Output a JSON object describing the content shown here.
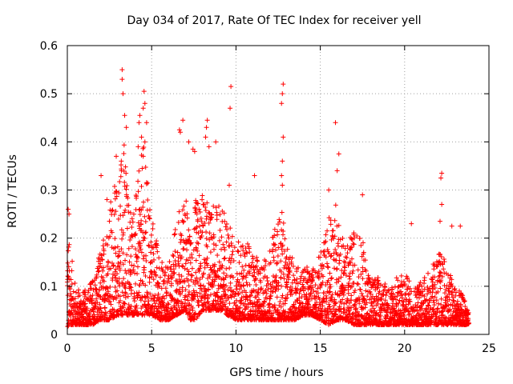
{
  "chart_data": {
    "type": "scatter",
    "title": "Day 034 of 2017, Rate Of TEC Index for receiver yell",
    "xlabel": "GPS time / hours",
    "ylabel": "ROTI / TECUs",
    "xlim": [
      0,
      25
    ],
    "ylim": [
      0,
      0.6
    ],
    "xticks": [
      0,
      5,
      10,
      15,
      20,
      25
    ],
    "xtick_labels": [
      "0",
      "5",
      "10",
      "15",
      "20",
      "25"
    ],
    "yticks": [
      0,
      0.1,
      0.2,
      0.3,
      0.4,
      0.5,
      0.6
    ],
    "ytick_labels": [
      "0",
      "0.1",
      "0.2",
      "0.3",
      "0.4",
      "0.5",
      "0.6"
    ],
    "grid": true,
    "marker": "+",
    "color": "#ff0000",
    "data_extent_hours": [
      0,
      23.8
    ],
    "profile": {
      "hours": [
        0,
        0.1,
        0.5,
        1,
        1.5,
        2,
        2.5,
        3,
        3.3,
        3.6,
        4,
        4.5,
        5,
        5.5,
        6,
        6.5,
        7,
        7.3,
        7.6,
        8,
        8.5,
        9,
        9.5,
        10,
        10.5,
        11,
        11.5,
        12,
        12.5,
        12.8,
        13,
        13.5,
        14,
        14.5,
        15,
        15.5,
        16,
        16.5,
        17,
        17.5,
        18,
        18.5,
        19,
        19.5,
        20,
        20.5,
        21,
        21.5,
        22,
        22.5,
        23,
        23.5,
        23.8
      ],
      "upper_envelope": [
        0.26,
        0.2,
        0.1,
        0.09,
        0.12,
        0.18,
        0.28,
        0.33,
        0.45,
        0.3,
        0.28,
        0.4,
        0.26,
        0.16,
        0.14,
        0.25,
        0.3,
        0.2,
        0.28,
        0.3,
        0.26,
        0.28,
        0.25,
        0.19,
        0.2,
        0.17,
        0.15,
        0.18,
        0.25,
        0.26,
        0.18,
        0.15,
        0.14,
        0.14,
        0.17,
        0.25,
        0.28,
        0.18,
        0.22,
        0.2,
        0.12,
        0.12,
        0.1,
        0.12,
        0.13,
        0.1,
        0.12,
        0.13,
        0.18,
        0.15,
        0.1,
        0.08,
        0.06
      ],
      "lower_floor": [
        0.01,
        0.02,
        0.02,
        0.02,
        0.02,
        0.03,
        0.03,
        0.04,
        0.04,
        0.04,
        0.04,
        0.04,
        0.04,
        0.03,
        0.03,
        0.04,
        0.05,
        0.03,
        0.03,
        0.05,
        0.05,
        0.05,
        0.04,
        0.03,
        0.03,
        0.03,
        0.03,
        0.03,
        0.03,
        0.03,
        0.03,
        0.03,
        0.04,
        0.04,
        0.03,
        0.02,
        0.03,
        0.03,
        0.02,
        0.02,
        0.02,
        0.02,
        0.02,
        0.02,
        0.02,
        0.02,
        0.02,
        0.02,
        0.02,
        0.02,
        0.02,
        0.02,
        0.02
      ]
    },
    "outliers": [
      {
        "x": 3.25,
        "y": 0.55
      },
      {
        "x": 3.25,
        "y": 0.53
      },
      {
        "x": 3.3,
        "y": 0.5
      },
      {
        "x": 3.4,
        "y": 0.455
      },
      {
        "x": 3.5,
        "y": 0.43
      },
      {
        "x": 3.2,
        "y": 0.36
      },
      {
        "x": 2.9,
        "y": 0.37
      },
      {
        "x": 2.0,
        "y": 0.33
      },
      {
        "x": 2.35,
        "y": 0.28
      },
      {
        "x": 4.55,
        "y": 0.505
      },
      {
        "x": 4.6,
        "y": 0.48
      },
      {
        "x": 4.5,
        "y": 0.47
      },
      {
        "x": 4.3,
        "y": 0.455
      },
      {
        "x": 4.25,
        "y": 0.44
      },
      {
        "x": 4.7,
        "y": 0.44
      },
      {
        "x": 4.4,
        "y": 0.41
      },
      {
        "x": 4.6,
        "y": 0.4
      },
      {
        "x": 4.2,
        "y": 0.39
      },
      {
        "x": 4.5,
        "y": 0.37
      },
      {
        "x": 6.65,
        "y": 0.425
      },
      {
        "x": 6.7,
        "y": 0.42
      },
      {
        "x": 6.85,
        "y": 0.445
      },
      {
        "x": 7.2,
        "y": 0.4
      },
      {
        "x": 7.45,
        "y": 0.385
      },
      {
        "x": 7.55,
        "y": 0.38
      },
      {
        "x": 8.3,
        "y": 0.445
      },
      {
        "x": 8.25,
        "y": 0.43
      },
      {
        "x": 8.2,
        "y": 0.41
      },
      {
        "x": 8.4,
        "y": 0.39
      },
      {
        "x": 8.8,
        "y": 0.4
      },
      {
        "x": 9.7,
        "y": 0.515
      },
      {
        "x": 9.65,
        "y": 0.47
      },
      {
        "x": 9.6,
        "y": 0.31
      },
      {
        "x": 11.1,
        "y": 0.33
      },
      {
        "x": 12.8,
        "y": 0.52
      },
      {
        "x": 12.75,
        "y": 0.5
      },
      {
        "x": 12.7,
        "y": 0.48
      },
      {
        "x": 12.8,
        "y": 0.41
      },
      {
        "x": 12.75,
        "y": 0.36
      },
      {
        "x": 12.7,
        "y": 0.33
      },
      {
        "x": 12.75,
        "y": 0.31
      },
      {
        "x": 15.9,
        "y": 0.44
      },
      {
        "x": 16.1,
        "y": 0.375
      },
      {
        "x": 16.0,
        "y": 0.34
      },
      {
        "x": 15.5,
        "y": 0.3
      },
      {
        "x": 17.5,
        "y": 0.29
      },
      {
        "x": 20.4,
        "y": 0.23
      },
      {
        "x": 22.2,
        "y": 0.335
      },
      {
        "x": 22.15,
        "y": 0.325
      },
      {
        "x": 22.2,
        "y": 0.27
      },
      {
        "x": 22.1,
        "y": 0.235
      },
      {
        "x": 22.8,
        "y": 0.225
      },
      {
        "x": 23.3,
        "y": 0.225
      },
      {
        "x": 0.05,
        "y": 0.26
      },
      {
        "x": 0.1,
        "y": 0.25
      }
    ]
  }
}
